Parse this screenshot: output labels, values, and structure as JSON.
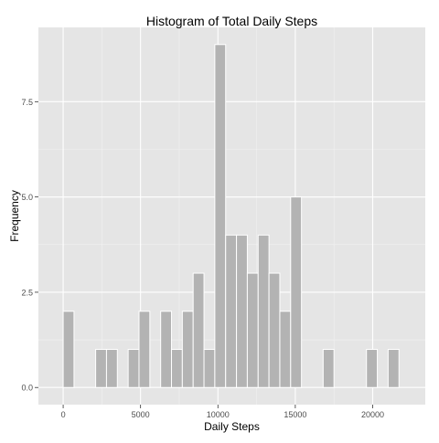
{
  "chart_data": {
    "type": "bar",
    "title": "Histogram of Total Daily Steps",
    "xlabel": "Daily Steps",
    "ylabel": "Frequency",
    "xlim": [
      -1600,
      23400
    ],
    "ylim": [
      -0.45,
      9.45
    ],
    "x_ticks": [
      0,
      5000,
      10000,
      15000,
      20000
    ],
    "x_tick_labels": [
      "0",
      "5000",
      "10000",
      "15000",
      "20000"
    ],
    "y_ticks": [
      0,
      2.5,
      5,
      7.5
    ],
    "y_tick_labels": [
      "0.0",
      "2.5",
      "5.0",
      "7.5"
    ],
    "grid": true,
    "bin_width": 700,
    "bins": [
      {
        "start": 0,
        "count": 2
      },
      {
        "start": 2100,
        "count": 1
      },
      {
        "start": 2800,
        "count": 1
      },
      {
        "start": 4200,
        "count": 1
      },
      {
        "start": 4900,
        "count": 2
      },
      {
        "start": 6300,
        "count": 2
      },
      {
        "start": 7000,
        "count": 1
      },
      {
        "start": 7700,
        "count": 2
      },
      {
        "start": 8400,
        "count": 3
      },
      {
        "start": 9100,
        "count": 1
      },
      {
        "start": 9800,
        "count": 9
      },
      {
        "start": 10500,
        "count": 4
      },
      {
        "start": 11200,
        "count": 4
      },
      {
        "start": 11900,
        "count": 3
      },
      {
        "start": 12600,
        "count": 4
      },
      {
        "start": 13300,
        "count": 3
      },
      {
        "start": 14000,
        "count": 2
      },
      {
        "start": 14700,
        "count": 5
      },
      {
        "start": 16800,
        "count": 1
      },
      {
        "start": 19600,
        "count": 1
      },
      {
        "start": 21000,
        "count": 1
      }
    ],
    "colors": {
      "panel": "#e5e5e5",
      "grid_major": "#ffffff",
      "grid_minor": "#f2f2f2",
      "bar_fill": "#b3b3b3",
      "bar_stroke": "#ffffff",
      "tick_text": "#4d4d4d",
      "label_text": "#000000"
    }
  }
}
